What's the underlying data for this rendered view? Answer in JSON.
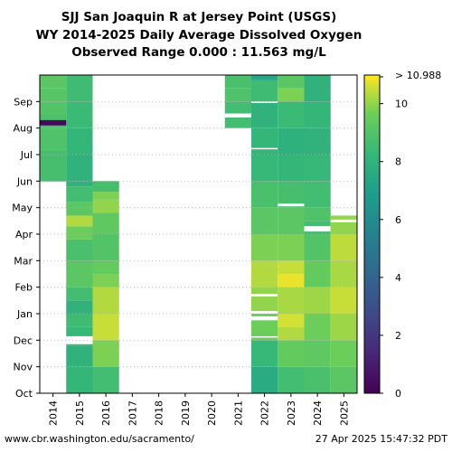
{
  "chart_data": {
    "type": "heatmap",
    "title": "SJJ San Joaquin R at Jersey Point (USGS)",
    "subtitle": "WY 2014-2025 Daily Average Dissolved Oxygen",
    "range_label": "Observed Range 0.000 : 11.563 mg/L",
    "x_categories": [
      "2014",
      "2015",
      "2016",
      "2017",
      "2018",
      "2019",
      "2020",
      "2021",
      "2022",
      "2023",
      "2024",
      "2025"
    ],
    "y_categories": [
      "Oct",
      "Nov",
      "Dec",
      "Jan",
      "Feb",
      "Mar",
      "Apr",
      "May",
      "Jun",
      "Jul",
      "Aug",
      "Sep"
    ],
    "colorbar": {
      "min": 0,
      "max": 10.988,
      "ticks": [
        0,
        2,
        4,
        6,
        8,
        10
      ],
      "top_label": "> 10.988",
      "colormap": "viridis"
    },
    "series": [
      {
        "year": "2014",
        "start": 8.0,
        "end": 12.0,
        "segments": [
          [
            8.0,
            8.5
          ],
          [
            9.2,
            8.7
          ],
          [
            10.0,
            8.9
          ],
          [
            10.5,
            8.8
          ],
          [
            11.0,
            9.0
          ],
          [
            11.5,
            9.1
          ],
          [
            12.0,
            9.2
          ]
        ],
        "events": [
          {
            "from": 10.1,
            "to": 10.3,
            "value": 0.3
          }
        ]
      },
      {
        "year": "2015",
        "start": 0.0,
        "end": 12.0,
        "segments": [
          [
            1.0,
            8.2
          ],
          [
            1.8,
            8.0
          ],
          [
            2.5,
            8.3
          ],
          [
            3.0,
            8.5
          ],
          [
            3.5,
            8.0
          ],
          [
            4.0,
            8.6
          ],
          [
            5.0,
            9.2
          ],
          [
            5.8,
            8.8
          ],
          [
            6.3,
            9.6
          ],
          [
            6.7,
            10.3
          ],
          [
            7.2,
            9.2
          ],
          [
            7.8,
            8.6
          ],
          [
            8.0,
            8.0
          ],
          [
            9.0,
            8.0
          ],
          [
            10.0,
            8.2
          ],
          [
            11.0,
            8.4
          ],
          [
            12.0,
            8.5
          ]
        ],
        "gaps": [
          [
            1.85,
            2.15
          ]
        ]
      },
      {
        "year": "2016",
        "start": 0.0,
        "end": 8.0,
        "segments": [
          [
            1.0,
            8.6
          ],
          [
            2.0,
            9.8
          ],
          [
            3.0,
            10.5
          ],
          [
            4.0,
            10.3
          ],
          [
            4.5,
            9.8
          ],
          [
            5.0,
            9.4
          ],
          [
            6.0,
            9.0
          ],
          [
            6.8,
            9.3
          ],
          [
            7.3,
            10.0
          ],
          [
            7.6,
            9.8
          ],
          [
            8.0,
            8.7
          ]
        ]
      },
      {
        "year": "2021",
        "start": 10.0,
        "end": 12.0,
        "segments": [
          [
            11.0,
            8.6
          ],
          [
            11.5,
            8.9
          ],
          [
            12.0,
            8.8
          ]
        ],
        "gaps": [
          [
            10.4,
            10.55
          ]
        ]
      },
      {
        "year": "2022",
        "start": 0.0,
        "end": 12.0,
        "segments": [
          [
            1.0,
            7.6
          ],
          [
            2.0,
            8.3
          ],
          [
            3.0,
            9.6
          ],
          [
            4.0,
            10.0
          ],
          [
            5.0,
            10.3
          ],
          [
            6.0,
            9.8
          ],
          [
            7.0,
            9.2
          ],
          [
            8.0,
            8.8
          ],
          [
            9.0,
            8.3
          ],
          [
            10.0,
            8.2
          ],
          [
            11.0,
            8.0
          ],
          [
            11.8,
            8.5
          ],
          [
            12.0,
            7.4
          ]
        ],
        "gaps": [
          [
            2.1,
            2.15
          ],
          [
            2.75,
            2.9
          ],
          [
            3.0,
            3.1
          ],
          [
            3.65,
            3.75
          ],
          [
            9.2,
            9.25
          ],
          [
            10.95,
            11.0
          ]
        ]
      },
      {
        "year": "2023",
        "start": 0.0,
        "end": 12.0,
        "segments": [
          [
            1.0,
            8.6
          ],
          [
            2.0,
            9.4
          ],
          [
            2.5,
            10.3
          ],
          [
            3.0,
            10.6
          ],
          [
            4.0,
            10.2
          ],
          [
            4.5,
            10.8
          ],
          [
            5.0,
            10.5
          ],
          [
            6.0,
            9.8
          ],
          [
            7.0,
            9.2
          ],
          [
            8.0,
            8.7
          ],
          [
            9.0,
            8.2
          ],
          [
            10.0,
            7.9
          ],
          [
            11.0,
            8.4
          ],
          [
            11.5,
            9.8
          ],
          [
            12.0,
            9.2
          ]
        ],
        "gaps": [
          [
            7.05,
            7.15
          ]
        ]
      },
      {
        "year": "2024",
        "start": 0.0,
        "end": 12.0,
        "segments": [
          [
            1.0,
            8.8
          ],
          [
            2.0,
            9.3
          ],
          [
            3.0,
            9.6
          ],
          [
            4.0,
            10.1
          ],
          [
            5.0,
            9.4
          ],
          [
            6.0,
            9.0
          ],
          [
            6.5,
            8.6
          ],
          [
            7.0,
            8.9
          ],
          [
            8.0,
            8.6
          ],
          [
            9.0,
            8.3
          ],
          [
            10.0,
            8.0
          ],
          [
            11.0,
            8.2
          ],
          [
            12.0,
            8.0
          ]
        ],
        "gaps": [
          [
            6.1,
            6.3
          ]
        ]
      },
      {
        "year": "2025",
        "start": 0.0,
        "end": 6.7,
        "segments": [
          [
            1.0,
            9.2
          ],
          [
            2.0,
            9.6
          ],
          [
            3.0,
            10.1
          ],
          [
            4.0,
            10.5
          ],
          [
            5.0,
            10.2
          ],
          [
            6.0,
            10.4
          ],
          [
            6.7,
            10.0
          ]
        ],
        "gaps": [
          [
            6.45,
            6.55
          ]
        ]
      }
    ]
  },
  "footer": {
    "url": "www.cbr.washington.edu/sacramento/",
    "timestamp": "27 Apr 2025 15:47:32 PDT"
  }
}
